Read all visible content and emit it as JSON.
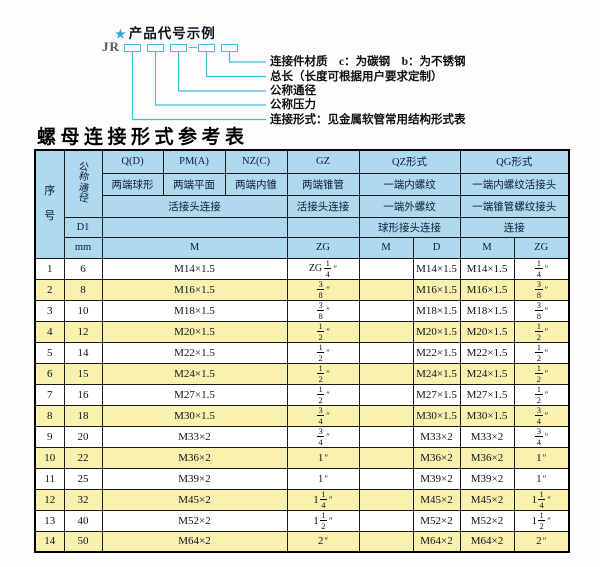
{
  "diagram": {
    "star": "★",
    "title": "产品代号示例",
    "code_prefix": "JR",
    "labels": [
      "连接件材质　c：为碳钢　b：为不锈钢",
      "总长（长度可根据用户要求定制）",
      "公称通径",
      "公称压力",
      "连接形式：见金属软管常用结构形式表"
    ]
  },
  "table_title": "螺母连接形式参考表",
  "table": {
    "header": {
      "seq": "序号",
      "dn": "公称通径",
      "d1": "D1",
      "mm": "mm",
      "forms": [
        "Q(D)",
        "PM(A)",
        "NZ(C)",
        "GZ",
        "QZ形式",
        "QG形式"
      ],
      "ends": [
        "两端球形",
        "两端平面",
        "两端内锥",
        "两端锥管",
        "一端内螺纹",
        "一端内螺纹活接头"
      ],
      "joins": [
        "活接头连接",
        "活接头连接",
        "一端外螺纹",
        "一端锥管螺纹接头"
      ],
      "conns": [
        "球形接头连接",
        "连接"
      ],
      "units": [
        "M",
        "ZG",
        "M",
        "D",
        "M",
        "ZG"
      ]
    },
    "rows": [
      {
        "no": "1",
        "mm": "6",
        "m": "M14×1.5",
        "gz": "ZG 1/4",
        "qz_m": "",
        "qz_d": "M14×1.5",
        "qg_m": "M14×1.5",
        "qg_zg": "1/4"
      },
      {
        "no": "2",
        "mm": "8",
        "m": "M16×1.5",
        "gz": "3/8",
        "qz_m": "",
        "qz_d": "M16×1.5",
        "qg_m": "M16×1.5",
        "qg_zg": "3/8"
      },
      {
        "no": "3",
        "mm": "10",
        "m": "M18×1.5",
        "gz": "3/8",
        "qz_m": "",
        "qz_d": "M18×1.5",
        "qg_m": "M18×1.5",
        "qg_zg": "3/8"
      },
      {
        "no": "4",
        "mm": "12",
        "m": "M20×1.5",
        "gz": "1/2",
        "qz_m": "",
        "qz_d": "M20×1.5",
        "qg_m": "M20×1.5",
        "qg_zg": "1/2"
      },
      {
        "no": "5",
        "mm": "14",
        "m": "M22×1.5",
        "gz": "1/2",
        "qz_m": "",
        "qz_d": "M22×1.5",
        "qg_m": "M22×1.5",
        "qg_zg": "1/2"
      },
      {
        "no": "6",
        "mm": "15",
        "m": "M24×1.5",
        "gz": "1/2",
        "qz_m": "",
        "qz_d": "M24×1.5",
        "qg_m": "M24×1.5",
        "qg_zg": "1/2"
      },
      {
        "no": "7",
        "mm": "16",
        "m": "M27×1.5",
        "gz": "1/2",
        "qz_m": "",
        "qz_d": "M27×1.5",
        "qg_m": "M27×1.5",
        "qg_zg": "1/2"
      },
      {
        "no": "8",
        "mm": "18",
        "m": "M30×1.5",
        "gz": "3/4",
        "qz_m": "",
        "qz_d": "M30×1.5",
        "qg_m": "M30×1.5",
        "qg_zg": "3/4"
      },
      {
        "no": "9",
        "mm": "20",
        "m": "M33×2",
        "gz": "3/4",
        "qz_m": "",
        "qz_d": "M33×2",
        "qg_m": "M33×2",
        "qg_zg": "3/4"
      },
      {
        "no": "10",
        "mm": "22",
        "m": "M36×2",
        "gz": "1",
        "qz_m": "",
        "qz_d": "M36×2",
        "qg_m": "M36×2",
        "qg_zg": "1"
      },
      {
        "no": "11",
        "mm": "25",
        "m": "M39×2",
        "gz": "1",
        "qz_m": "",
        "qz_d": "M39×2",
        "qg_m": "M39×2",
        "qg_zg": "1"
      },
      {
        "no": "12",
        "mm": "32",
        "m": "M45×2",
        "gz": "1 1/4",
        "qz_m": "",
        "qz_d": "M45×2",
        "qg_m": "M45×2",
        "qg_zg": "1 1/4"
      },
      {
        "no": "13",
        "mm": "40",
        "m": "M52×2",
        "gz": "1 1/2",
        "qz_m": "",
        "qz_d": "M52×2",
        "qg_m": "M52×2",
        "qg_zg": "1 1/2"
      },
      {
        "no": "14",
        "mm": "50",
        "m": "M64×2",
        "gz": "2",
        "qz_m": "",
        "qz_d": "M64×2",
        "qg_m": "M64×2",
        "qg_zg": "2"
      }
    ]
  },
  "colors": {
    "accent_cyan": "#49b9e6",
    "star_blue": "#2ba7dd",
    "header_bg": "#aed9ef",
    "row_alt_yellow": "#f8f2ae",
    "border": "#1a1a1a"
  }
}
